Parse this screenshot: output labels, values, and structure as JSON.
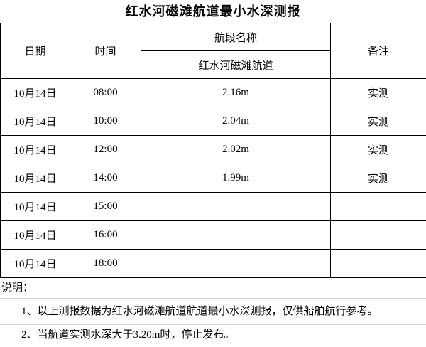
{
  "title": "红水河磁滩航道最小水深测报",
  "table": {
    "headers": {
      "date": "日期",
      "time": "时间",
      "segment_group": "航段名称",
      "segment_name": "红水河磁滩航道",
      "remark": "备注"
    },
    "rows": [
      {
        "date": "10月14日",
        "time": "08:00",
        "depth": "2.16m",
        "remark": "实测"
      },
      {
        "date": "10月14日",
        "time": "10:00",
        "depth": "2.04m",
        "remark": "实测"
      },
      {
        "date": "10月14日",
        "time": "12:00",
        "depth": "2.02m",
        "remark": "实测"
      },
      {
        "date": "10月14日",
        "time": "14:00",
        "depth": "1.99m",
        "remark": "实测"
      },
      {
        "date": "10月14日",
        "time": "15:00",
        "depth": "",
        "remark": ""
      },
      {
        "date": "10月14日",
        "time": "16:00",
        "depth": "",
        "remark": ""
      },
      {
        "date": "10月14日",
        "time": "18:00",
        "depth": "",
        "remark": ""
      }
    ]
  },
  "notes": {
    "label": "说明：",
    "items": [
      "1、以上测报数据为红水河磁滩航道航道最小水深测报，仅供船舶航行参考。",
      "2、当航道实测水深大于3.20m时，停止发布。"
    ]
  },
  "colors": {
    "background": "#ffffff",
    "text": "#000000",
    "table_border": "#000000",
    "note_divider": "#d4d4d4"
  }
}
